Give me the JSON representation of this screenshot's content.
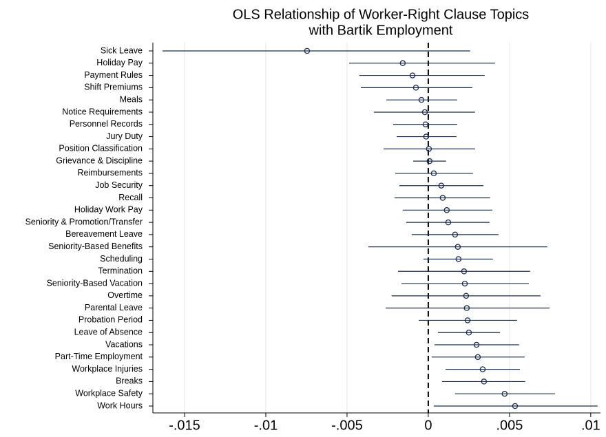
{
  "chart_data": {
    "type": "coefplot",
    "title": "OLS Relationship of Worker-Right Clause Topics",
    "subtitle": "with Bartik Employment",
    "categories": [
      "Sick Leave",
      "Holiday Pay",
      "Payment Rules",
      "Shift Premiums",
      "Meals",
      "Notice Requirements",
      "Personnel Records",
      "Jury Duty",
      "Position Classification",
      "Grievance & Discipline",
      "Reimbursements",
      "Job Security",
      "Recall",
      "Holiday Work Pay",
      "Seniority & Promotion/Transfer",
      "Bereavement Leave",
      "Seniority-Based Benefits",
      "Scheduling",
      "Termination",
      "Seniority-Based Vacation",
      "Overtime",
      "Parental Leave",
      "Probation Period",
      "Leave of Absence",
      "Vacations",
      "Part-Time Employment",
      "Workplace Injuries",
      "Breaks",
      "Workplace Safety",
      "Work Hours"
    ],
    "series": [
      {
        "color": "#1a2b4c",
        "values": [
          -0.00746,
          -0.00157,
          -0.00097,
          -0.00076,
          -0.00042,
          -0.00021,
          -0.00017,
          -0.00013,
          4e-05,
          8e-05,
          0.00034,
          0.0008,
          0.00089,
          0.00114,
          0.00123,
          0.00165,
          0.00182,
          0.00186,
          0.0022,
          0.00225,
          0.00233,
          0.00237,
          0.00242,
          0.0025,
          0.00297,
          0.00305,
          0.00335,
          0.00343,
          0.0047,
          0.00534
        ],
        "lower": [
          -0.01636,
          -0.00487,
          -0.00424,
          -0.00415,
          -0.00258,
          -0.00335,
          -0.00216,
          -0.00195,
          -0.00275,
          -0.00093,
          -0.00203,
          -0.00178,
          -0.00208,
          -0.00157,
          -0.00136,
          -0.00102,
          -0.00369,
          -0.0003,
          -0.00186,
          -0.00165,
          -0.00225,
          -0.00263,
          -0.00059,
          0.00059,
          0.00038,
          0.00021,
          0.00106,
          0.00085,
          0.00165,
          0.00034
        ],
        "upper": [
          0.00258,
          0.00411,
          0.00347,
          0.00271,
          0.00178,
          0.00288,
          0.00178,
          0.00174,
          0.00288,
          0.0011,
          0.00275,
          0.00339,
          0.00381,
          0.00394,
          0.00377,
          0.00432,
          0.00733,
          0.00398,
          0.00627,
          0.00619,
          0.00691,
          0.00746,
          0.00547,
          0.00441,
          0.00559,
          0.00593,
          0.00564,
          0.00597,
          0.0078,
          0.01042
        ]
      }
    ],
    "xlim": [
      -0.01695,
      0.0106
    ],
    "xticks": [
      {
        "value": -0.015,
        "label": "-.015"
      },
      {
        "value": -0.01,
        "label": "-.01"
      },
      {
        "value": -0.005,
        "label": "-.005"
      },
      0,
      {
        "value": 0.005,
        "label": ".005"
      },
      {
        "value": 0.01,
        "label": ".01"
      }
    ],
    "xline": 0,
    "grid": true
  }
}
